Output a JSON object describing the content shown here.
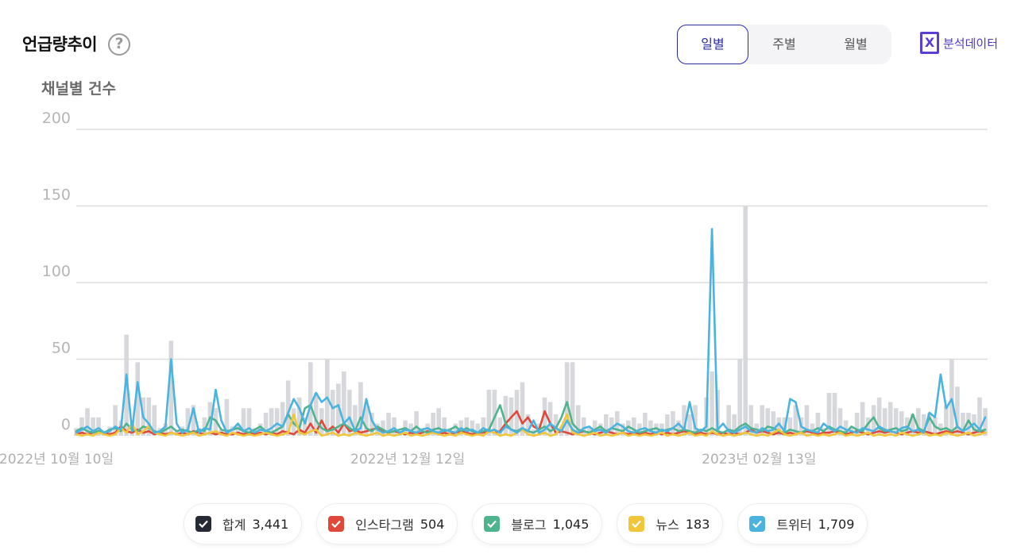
{
  "header": {
    "title": "언급량추이",
    "help_icon": "?"
  },
  "period_tabs": {
    "daily": "일별",
    "weekly": "주별",
    "monthly": "월별",
    "selected": "일별"
  },
  "export": {
    "icon": "X",
    "label": "분석데이터"
  },
  "colors": {
    "total": "#d7d8dc",
    "instagram": "#e0483c",
    "blog": "#4fb38d",
    "news": "#f2c63a",
    "twitter": "#4ab3df",
    "accent": "#2b2aa6"
  },
  "chart_data": {
    "type": "line",
    "title": "",
    "ylabel": "채널별 건수",
    "xlabel": "",
    "ylim": [
      0,
      200
    ],
    "yticks": [
      0,
      50,
      100,
      150,
      200
    ],
    "x_tick_labels": [
      "2022년 10월 10일",
      "2022년 12월 12일",
      "2023년 02월 13일"
    ],
    "x_tick_indices": [
      0,
      63,
      126
    ],
    "grid": true,
    "legend_position": "bottom",
    "total_bars": {
      "name": "합계",
      "values": [
        5,
        12,
        18,
        12,
        12,
        3,
        6,
        20,
        10,
        66,
        8,
        48,
        25,
        25,
        20,
        5,
        8,
        62,
        3,
        6,
        18,
        20,
        5,
        12,
        22,
        18,
        4,
        24,
        6,
        8,
        18,
        18,
        5,
        8,
        15,
        18,
        18,
        22,
        36,
        18,
        25,
        12,
        48,
        28,
        18,
        50,
        30,
        34,
        42,
        30,
        20,
        35,
        20,
        15,
        8,
        10,
        15,
        12,
        3,
        10,
        8,
        16,
        5,
        8,
        15,
        18,
        12,
        5,
        8,
        10,
        12,
        10,
        8,
        12,
        30,
        30,
        12,
        26,
        25,
        30,
        35,
        14,
        4,
        8,
        25,
        22,
        14,
        6,
        48,
        48,
        20,
        12,
        5,
        10,
        8,
        14,
        12,
        16,
        8,
        10,
        12,
        8,
        15,
        10,
        8,
        8,
        14,
        16,
        10,
        20,
        14,
        20,
        4,
        25,
        42,
        30,
        2,
        20,
        14,
        50,
        150,
        20,
        8,
        20,
        18,
        16,
        12,
        12,
        12,
        20,
        12,
        20,
        8,
        15,
        5,
        28,
        28,
        18,
        10,
        5,
        15,
        22,
        12,
        20,
        25,
        18,
        22,
        18,
        16,
        12,
        14,
        18,
        14,
        15,
        12,
        8,
        20,
        50,
        32,
        15,
        15,
        14,
        25,
        18
      ]
    },
    "series": [
      {
        "name": "인스타그램",
        "total": "504",
        "values": [
          1,
          2,
          1,
          2,
          3,
          2,
          1,
          2,
          6,
          3,
          2,
          4,
          2,
          3,
          1,
          2,
          1,
          2,
          1,
          2,
          1,
          3,
          2,
          1,
          2,
          1,
          2,
          1,
          1,
          2,
          1,
          2,
          1,
          2,
          1,
          2,
          1,
          3,
          2,
          1,
          4,
          2,
          8,
          2,
          10,
          3,
          6,
          2,
          8,
          3,
          4,
          2,
          3,
          4,
          5,
          3,
          2,
          3,
          2,
          1,
          2,
          1,
          2,
          3,
          2,
          1,
          2,
          1,
          2,
          3,
          2,
          1,
          2,
          2,
          3,
          2,
          3,
          8,
          12,
          16,
          8,
          12,
          6,
          4,
          16,
          8,
          2,
          3,
          2,
          1,
          2,
          3,
          2,
          1,
          2,
          3,
          2,
          1,
          2,
          1,
          2,
          1,
          2,
          1,
          2,
          1,
          2,
          1,
          2,
          3,
          2,
          1,
          2,
          1,
          2,
          1,
          2,
          1,
          2,
          1,
          2,
          4,
          2,
          3,
          2,
          1,
          2,
          1,
          2,
          1,
          2,
          3,
          2,
          1,
          2,
          2,
          3,
          2,
          1,
          2,
          3,
          2,
          1,
          2,
          3,
          2,
          3,
          2,
          1,
          2,
          3,
          2,
          3,
          2,
          1,
          2,
          3,
          2,
          3,
          2,
          1,
          2,
          3,
          2
        ]
      },
      {
        "name": "블로그",
        "total": "1,045",
        "values": [
          3,
          5,
          3,
          2,
          3,
          2,
          4,
          5,
          3,
          8,
          4,
          3,
          6,
          5,
          3,
          2,
          4,
          6,
          3,
          4,
          3,
          2,
          4,
          3,
          12,
          10,
          4,
          3,
          4,
          5,
          3,
          2,
          4,
          6,
          3,
          2,
          4,
          6,
          14,
          8,
          5,
          18,
          20,
          10,
          5,
          3,
          4,
          6,
          8,
          5,
          3,
          12,
          5,
          3,
          6,
          4,
          2,
          3,
          4,
          5,
          3,
          6,
          3,
          2,
          4,
          5,
          3,
          4,
          6,
          3,
          5,
          3,
          2,
          3,
          4,
          12,
          20,
          8,
          4,
          3,
          5,
          3,
          2,
          4,
          6,
          3,
          5,
          12,
          22,
          8,
          4,
          3,
          2,
          4,
          6,
          3,
          5,
          4,
          3,
          6,
          4,
          2,
          3,
          4,
          5,
          3,
          4,
          5,
          3,
          4,
          3,
          2,
          4,
          3,
          5,
          3,
          2,
          4,
          3,
          6,
          8,
          5,
          4,
          3,
          6,
          5,
          3,
          2,
          4,
          3,
          2,
          4,
          3,
          5,
          3,
          6,
          4,
          3,
          2,
          6,
          4,
          3,
          8,
          12,
          5,
          3,
          4,
          5,
          3,
          4,
          14,
          5,
          3,
          12,
          6,
          4,
          5,
          3,
          6,
          3,
          10,
          4,
          3,
          4
        ]
      },
      {
        "name": "뉴스",
        "total": "183",
        "values": [
          1,
          0,
          1,
          0,
          2,
          1,
          0,
          1,
          5,
          2,
          8,
          1,
          3,
          6,
          2,
          1,
          0,
          2,
          1,
          0,
          1,
          2,
          0,
          1,
          2,
          3,
          1,
          0,
          2,
          1,
          0,
          1,
          0,
          1,
          2,
          1,
          0,
          1,
          2,
          14,
          2,
          1,
          3,
          4,
          0,
          1,
          2,
          0,
          1,
          0,
          2,
          1,
          0,
          1,
          2,
          0,
          1,
          0,
          1,
          2,
          0,
          1,
          0,
          1,
          2,
          1,
          0,
          1,
          0,
          2,
          1,
          0,
          1,
          0,
          3,
          2,
          0,
          1,
          0,
          2,
          4,
          1,
          0,
          1,
          2,
          0,
          1,
          6,
          14,
          2,
          1,
          0,
          1,
          2,
          0,
          1,
          0,
          1,
          2,
          0,
          1,
          0,
          1,
          0,
          1,
          2,
          0,
          1,
          0,
          1,
          2,
          0,
          1,
          0,
          3,
          1,
          0,
          1,
          0,
          1,
          2,
          1,
          0,
          1,
          0,
          2,
          4,
          1,
          0,
          1,
          2,
          0,
          1,
          0,
          1,
          0,
          1,
          2,
          0,
          1,
          0,
          1,
          2,
          0,
          1,
          0,
          1,
          0,
          2,
          1,
          0,
          1,
          2,
          0,
          1,
          0,
          2,
          1,
          0,
          1,
          2,
          0,
          1,
          2
        ]
      },
      {
        "name": "트위터",
        "total": "1,709",
        "values": [
          2,
          4,
          6,
          3,
          5,
          2,
          3,
          6,
          4,
          40,
          3,
          35,
          12,
          8,
          2,
          3,
          6,
          50,
          8,
          2,
          4,
          18,
          2,
          5,
          4,
          30,
          10,
          2,
          4,
          8,
          3,
          5,
          2,
          4,
          3,
          5,
          8,
          6,
          15,
          24,
          18,
          8,
          20,
          28,
          22,
          25,
          18,
          20,
          8,
          12,
          3,
          5,
          24,
          10,
          4,
          2,
          3,
          5,
          2,
          4,
          3,
          2,
          4,
          5,
          3,
          2,
          4,
          3,
          2,
          5,
          3,
          4,
          2,
          5,
          3,
          4,
          2,
          6,
          4,
          2,
          5,
          3,
          10,
          2,
          4,
          8,
          5,
          3,
          10,
          4,
          2,
          5,
          6,
          3,
          4,
          2,
          5,
          8,
          6,
          3,
          2,
          4,
          5,
          3,
          2,
          4,
          3,
          5,
          8,
          4,
          22,
          5,
          3,
          6,
          135,
          4,
          8,
          3,
          2,
          4,
          6,
          3,
          2,
          5,
          3,
          4,
          8,
          3,
          24,
          22,
          6,
          4,
          3,
          2,
          8,
          5,
          3,
          6,
          4,
          3,
          2,
          5,
          4,
          3,
          6,
          4,
          3,
          2,
          5,
          6,
          3,
          4,
          2,
          15,
          12,
          40,
          18,
          24,
          6,
          3,
          5,
          8,
          4,
          12
        ]
      }
    ],
    "legend_total": {
      "name": "합계",
      "value": "3,441"
    }
  }
}
